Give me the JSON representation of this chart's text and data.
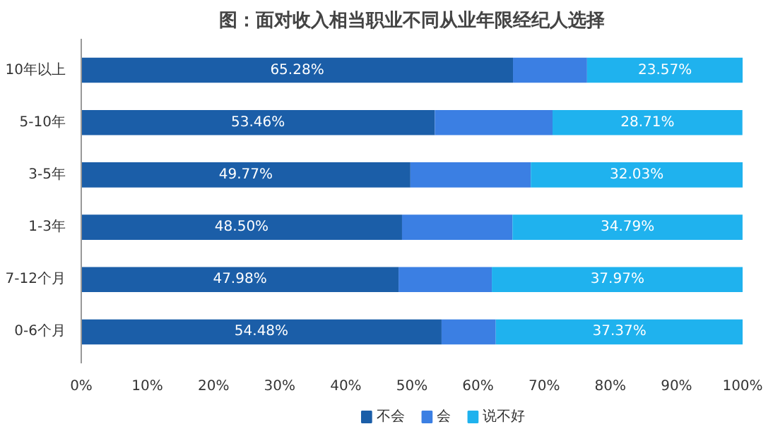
{
  "chart_data": {
    "type": "bar",
    "orientation": "horizontal",
    "stacked": true,
    "title": "图：面对收入相当职业不同从业年限经纪人选择",
    "categories": [
      "10年以上",
      "5-10年",
      "3-5年",
      "1-3年",
      "7-12个月",
      "0-6个月"
    ],
    "series": [
      {
        "name": "不会",
        "color": "#1b5ea8",
        "values": [
          65.28,
          53.46,
          49.77,
          48.5,
          47.98,
          54.48
        ],
        "value_labels": [
          "65.28%",
          "53.46%",
          "49.77%",
          "48.50%",
          "47.98%",
          "54.48%"
        ]
      },
      {
        "name": "会",
        "color": "#3b7fe3",
        "values": [
          11.2,
          17.8,
          18.2,
          16.7,
          14.1,
          8.2
        ]
      },
      {
        "name": "说不好",
        "color": "#1fb2ee",
        "values": [
          23.57,
          28.71,
          32.03,
          34.79,
          37.97,
          37.37
        ],
        "value_labels": [
          "23.57%",
          "28.71%",
          "32.03%",
          "34.79%",
          "37.97%",
          "37.37%"
        ]
      }
    ],
    "xlim": [
      0,
      100
    ],
    "xticks": [
      {
        "value": 0,
        "label": "0%"
      },
      {
        "value": 10,
        "label": "10%"
      },
      {
        "value": 20,
        "label": "20%"
      },
      {
        "value": 30,
        "label": "30%"
      },
      {
        "value": 40,
        "label": "40%"
      },
      {
        "value": 50,
        "label": "50%"
      },
      {
        "value": 60,
        "label": "60%"
      },
      {
        "value": 70,
        "label": "70%"
      },
      {
        "value": 80,
        "label": "80%"
      },
      {
        "value": 90,
        "label": "90%"
      },
      {
        "value": 100,
        "label": "100%"
      }
    ],
    "legend": "bottom",
    "grid": false
  }
}
